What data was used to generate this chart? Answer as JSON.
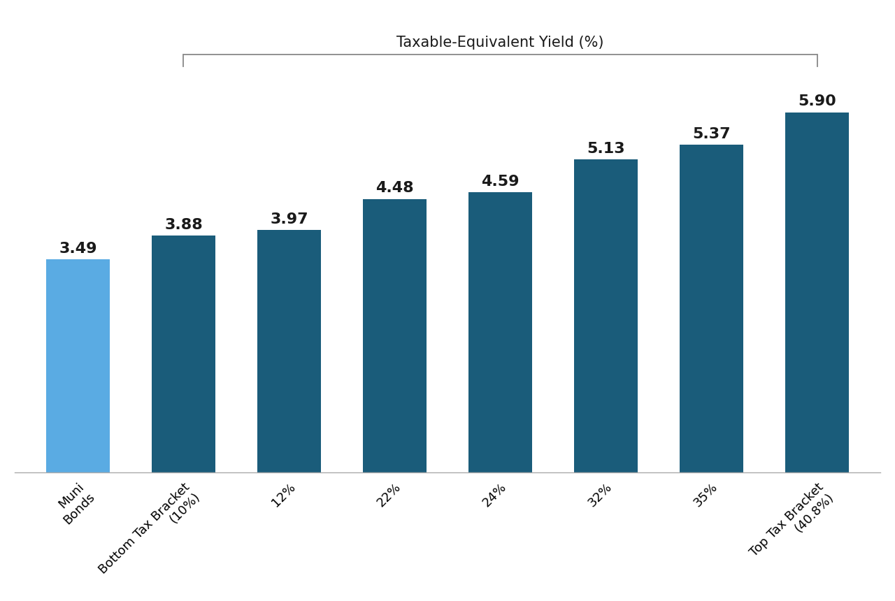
{
  "categories": [
    "Muni\nBonds",
    "Bottom Tax Bracket\n(10%)",
    "12%",
    "22%",
    "24%",
    "32%",
    "35%",
    "Top Tax Bracket\n(40.8%)"
  ],
  "values": [
    3.49,
    3.88,
    3.97,
    4.48,
    4.59,
    5.13,
    5.37,
    5.9
  ],
  "bar_colors": [
    "#5aabe3",
    "#1a5c7a",
    "#1a5c7a",
    "#1a5c7a",
    "#1a5c7a",
    "#1a5c7a",
    "#1a5c7a",
    "#1a5c7a"
  ],
  "label_color": "#1a1a1a",
  "title_text": "Taxable-Equivalent Yield (%)",
  "title_fontsize": 15,
  "value_fontsize": 16,
  "tick_fontsize": 13,
  "ylim": [
    0,
    7.5
  ],
  "background_color": "#ffffff",
  "bracket_color": "#888888",
  "bar_width": 0.6
}
